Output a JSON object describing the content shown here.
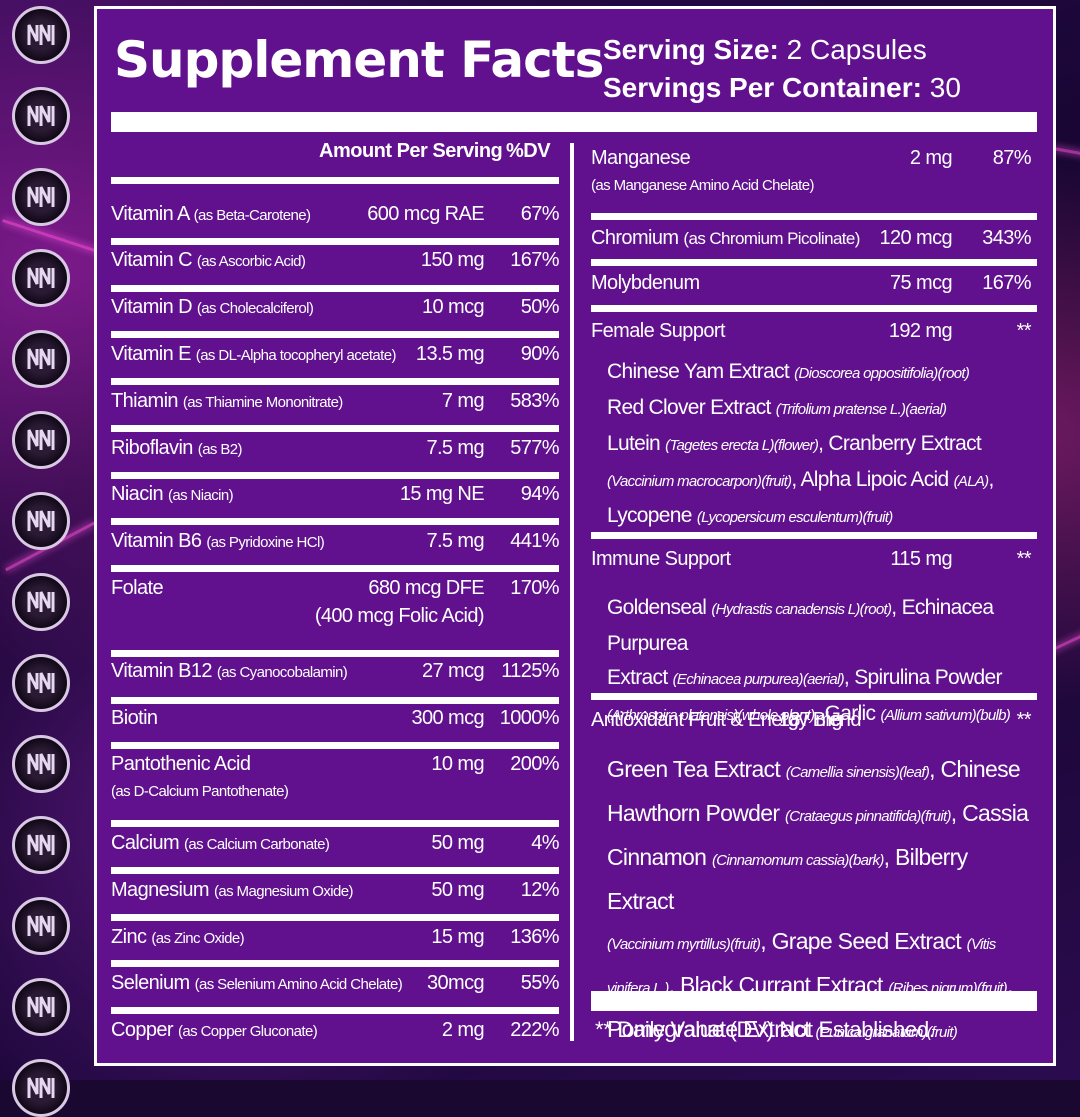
{
  "header": {
    "title": "Supplement Facts",
    "serving_size_label": "Serving Size:",
    "serving_size_value": "2 Capsules",
    "servings_label": "Servings Per Container:",
    "servings_value": "30"
  },
  "columns": {
    "amount": "Amount Per Serving",
    "dv": "%DV"
  },
  "left_rows": [
    {
      "name": "Vitamin A",
      "source": "(as Beta-Carotene)",
      "amount": "600 mcg RAE",
      "dv": "67%"
    },
    {
      "name": "Vitamin C",
      "source": "(as Ascorbic Acid)",
      "amount": "150 mg",
      "dv": "167%"
    },
    {
      "name": "Vitamin D",
      "source": "(as Cholecalciferol)",
      "amount": "10 mcg",
      "dv": "50%"
    },
    {
      "name": "Vitamin E",
      "source": "(as DL-Alpha tocopheryl acetate)",
      "amount": "13.5 mg",
      "dv": "90%"
    },
    {
      "name": "Thiamin",
      "source": "(as Thiamine Mononitrate)",
      "amount": "7 mg",
      "dv": "583%"
    },
    {
      "name": "Riboflavin",
      "source": "(as B2)",
      "amount": "7.5 mg",
      "dv": "577%"
    },
    {
      "name": "Niacin",
      "source": "(as Niacin)",
      "amount": "15 mg NE",
      "dv": "94%"
    },
    {
      "name": "Vitamin B6",
      "source": "(as Pyridoxine HCl)",
      "amount": "7.5 mg",
      "dv": "441%"
    },
    {
      "name": "Folate",
      "source": "",
      "amount": "680 mcg DFE",
      "dv": "170%",
      "amount_line2": "(400 mcg Folic Acid)"
    },
    {
      "name": "Vitamin B12",
      "source": "(as Cyanocobalamin)",
      "amount": "27 mcg",
      "dv": "1125%"
    },
    {
      "name": "Biotin",
      "source": "",
      "amount": "300 mcg",
      "dv": "1000%"
    },
    {
      "name": "Pantothenic Acid",
      "source": "",
      "amount": "10 mg",
      "dv": "200%",
      "source_line2": "(as D-Calcium Pantothenate)"
    },
    {
      "name": "Calcium",
      "source": "(as Calcium Carbonate)",
      "amount": "50 mg",
      "dv": "4%"
    },
    {
      "name": "Magnesium",
      "source": "(as Magnesium Oxide)",
      "amount": "50 mg",
      "dv": "12%"
    },
    {
      "name": "Zinc",
      "source": "(as Zinc Oxide)",
      "amount": "15 mg",
      "dv": "136%"
    },
    {
      "name": "Selenium",
      "source": "(as Selenium Amino Acid Chelate)",
      "amount": "30mcg",
      "dv": "55%"
    },
    {
      "name": "Copper",
      "source": "(as Copper Gluconate)",
      "amount": "2 mg",
      "dv": "222%"
    }
  ],
  "right_rows": [
    {
      "name": "Manganese",
      "source": "",
      "amount": "2 mg",
      "dv": "87%",
      "source_line2": "(as Manganese Amino Acid Chelate)"
    },
    {
      "name": "Chromium",
      "source": "(as Chromium Picolinate)",
      "amount": "120 mcg",
      "dv": "343%"
    },
    {
      "name": "Molybdenum",
      "source": "",
      "amount": "75 mcg",
      "dv": "167%"
    }
  ],
  "blends": [
    {
      "name": "Female Support",
      "amount": "192 mg",
      "dv": "**",
      "lines": [
        [
          {
            "t": "Chinese Yam Extract "
          },
          {
            "i": "(Dioscorea oppositifolia)(root)"
          }
        ],
        [
          {
            "t": "Red Clover Extract "
          },
          {
            "i": "(Trifolium pratense L.)(aerial)"
          }
        ],
        [
          {
            "t": "Lutein "
          },
          {
            "i": "(Tagetes erecta L)(flower)"
          },
          {
            "t": ", Cranberry Extract"
          }
        ],
        [
          {
            "i": "(Vaccinium macrocarpon)(fruit)"
          },
          {
            "t": ", Alpha Lipoic Acid "
          },
          {
            "i": "(ALA)"
          },
          {
            "t": ","
          }
        ],
        [
          {
            "t": "Lycopene "
          },
          {
            "i": "(Lycopersicum esculentum)(fruit)"
          }
        ]
      ]
    },
    {
      "name": "Immune Support",
      "amount": "115 mg",
      "dv": "**",
      "lines": [
        [
          {
            "t": "Goldenseal "
          },
          {
            "i": "(Hydrastis canadensis L)(root)"
          },
          {
            "t": ", Echinacea Purpurea"
          }
        ],
        [
          {
            "t": "Extract "
          },
          {
            "i": "(Echinacea purpurea)(aerial)"
          },
          {
            "t": ", Spirulina Powder"
          }
        ],
        [
          {
            "i": "(Arthrospira platensis)(whole plant)"
          },
          {
            "t": ", Garlic "
          },
          {
            "i": "(Allium sativum)(bulb)"
          }
        ]
      ]
    },
    {
      "name": "Antioxidant Fruit & Energy Blend",
      "amount": "187 mg",
      "dv": "**",
      "lines": [
        [
          {
            "t": "Green Tea Extract "
          },
          {
            "i": "(Camellia sinensis)(leaf)"
          },
          {
            "t": ", Chinese"
          }
        ],
        [
          {
            "t": "Hawthorn Powder "
          },
          {
            "i": "(Crataegus pinnatifida)(fruit)"
          },
          {
            "t": ", Cassia"
          }
        ],
        [
          {
            "t": "Cinnamon "
          },
          {
            "i": "(Cinnamomum cassia)(bark)"
          },
          {
            "t": ", Bilberry Extract"
          }
        ],
        [
          {
            "i": "(Vaccinium myrtillus)(fruit)"
          },
          {
            "t": ", Grape Seed Extract "
          },
          {
            "i": "(Vitis"
          }
        ],
        [
          {
            "i": "vinifera L.)"
          },
          {
            "t": ", Black Currant Extract "
          },
          {
            "i": "(Ribes nigrum)(fruit)"
          },
          {
            "t": ","
          }
        ],
        [
          {
            "t": "Pomegranate Extract "
          },
          {
            "i": "(Punica granatum)(fruit)"
          }
        ]
      ]
    }
  ],
  "footnote": "** Daily Value (DV) Not Established.",
  "colors": {
    "panel": "#61118e",
    "text": "#ffffff"
  },
  "icons": {
    "logo": "brand-logo-icon"
  }
}
